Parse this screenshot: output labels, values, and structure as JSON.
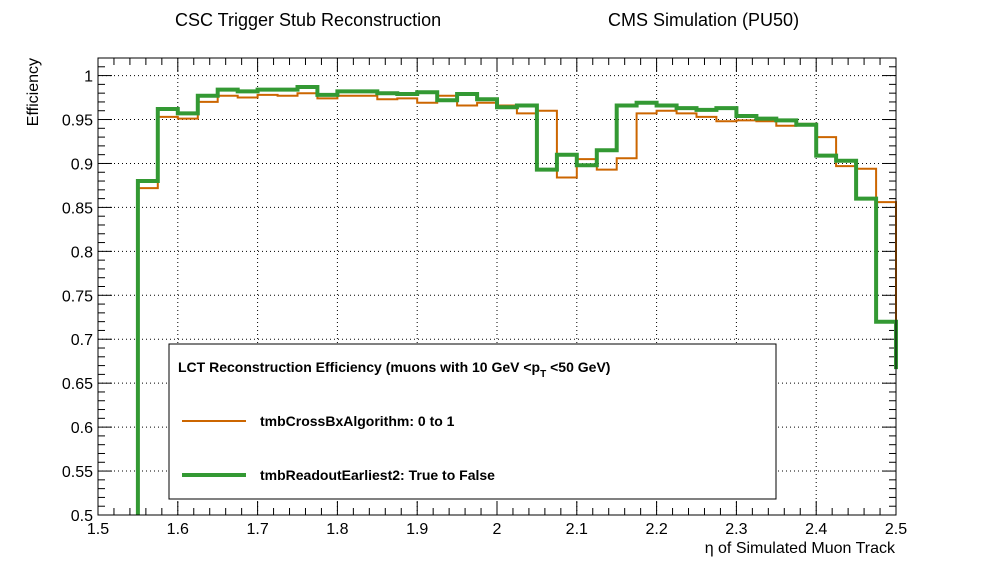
{
  "chart_data": {
    "type": "line",
    "title_left": "CSC Trigger Stub Reconstruction",
    "title_right": "CMS Simulation (PU50)",
    "xlabel": "η of Simulated Muon Track",
    "ylabel": "Efficiency",
    "xlim": [
      1.5,
      2.5
    ],
    "ylim": [
      0.5,
      1.02
    ],
    "xticks": [
      "1.5",
      "1.6",
      "1.7",
      "1.8",
      "1.9",
      "2",
      "2.1",
      "2.2",
      "2.3",
      "2.4",
      "2.5"
    ],
    "yticks": [
      "0.5",
      "0.55",
      "0.6",
      "0.65",
      "0.7",
      "0.75",
      "0.8",
      "0.85",
      "0.9",
      "0.95",
      "1"
    ],
    "grid": true,
    "legend": {
      "header_main": "LCT Reconstruction Efficiency  (muons with 10 GeV <p",
      "header_sub": "T",
      "header_tail": " <50 GeV)",
      "placement": "bottom-center"
    },
    "bin_edges": [
      1.55,
      1.575,
      1.6,
      1.625,
      1.65,
      1.675,
      1.7,
      1.725,
      1.75,
      1.775,
      1.8,
      1.825,
      1.85,
      1.875,
      1.9,
      1.925,
      1.95,
      1.975,
      2.0,
      2.025,
      2.05,
      2.075,
      2.1,
      2.125,
      2.15,
      2.175,
      2.2,
      2.225,
      2.25,
      2.275,
      2.3,
      2.325,
      2.35,
      2.375,
      2.4,
      2.425,
      2.45,
      2.475,
      2.5
    ],
    "series": [
      {
        "name": "tmbCrossBxAlgorithm: 0 to 1",
        "color": "#cc6600",
        "values": [
          0.872,
          0.953,
          0.951,
          0.97,
          0.977,
          0.975,
          0.978,
          0.977,
          0.98,
          0.974,
          0.977,
          0.977,
          0.973,
          0.974,
          0.969,
          0.977,
          0.966,
          0.969,
          0.966,
          0.957,
          0.96,
          0.884,
          0.905,
          0.893,
          0.906,
          0.957,
          0.96,
          0.957,
          0.953,
          0.948,
          0.949,
          0.948,
          0.943,
          0.945,
          0.93,
          0.897,
          0.894,
          0.856,
          0.72
        ]
      },
      {
        "name": "tmbReadoutEarliest2: True to False",
        "color": "#339933",
        "values": [
          0.88,
          0.962,
          0.957,
          0.977,
          0.984,
          0.982,
          0.984,
          0.984,
          0.987,
          0.978,
          0.982,
          0.982,
          0.98,
          0.979,
          0.981,
          0.972,
          0.979,
          0.973,
          0.964,
          0.966,
          0.893,
          0.91,
          0.898,
          0.915,
          0.966,
          0.969,
          0.966,
          0.963,
          0.961,
          0.963,
          0.954,
          0.951,
          0.949,
          0.944,
          0.909,
          0.903,
          0.86,
          0.72,
          0.666
        ]
      }
    ]
  }
}
